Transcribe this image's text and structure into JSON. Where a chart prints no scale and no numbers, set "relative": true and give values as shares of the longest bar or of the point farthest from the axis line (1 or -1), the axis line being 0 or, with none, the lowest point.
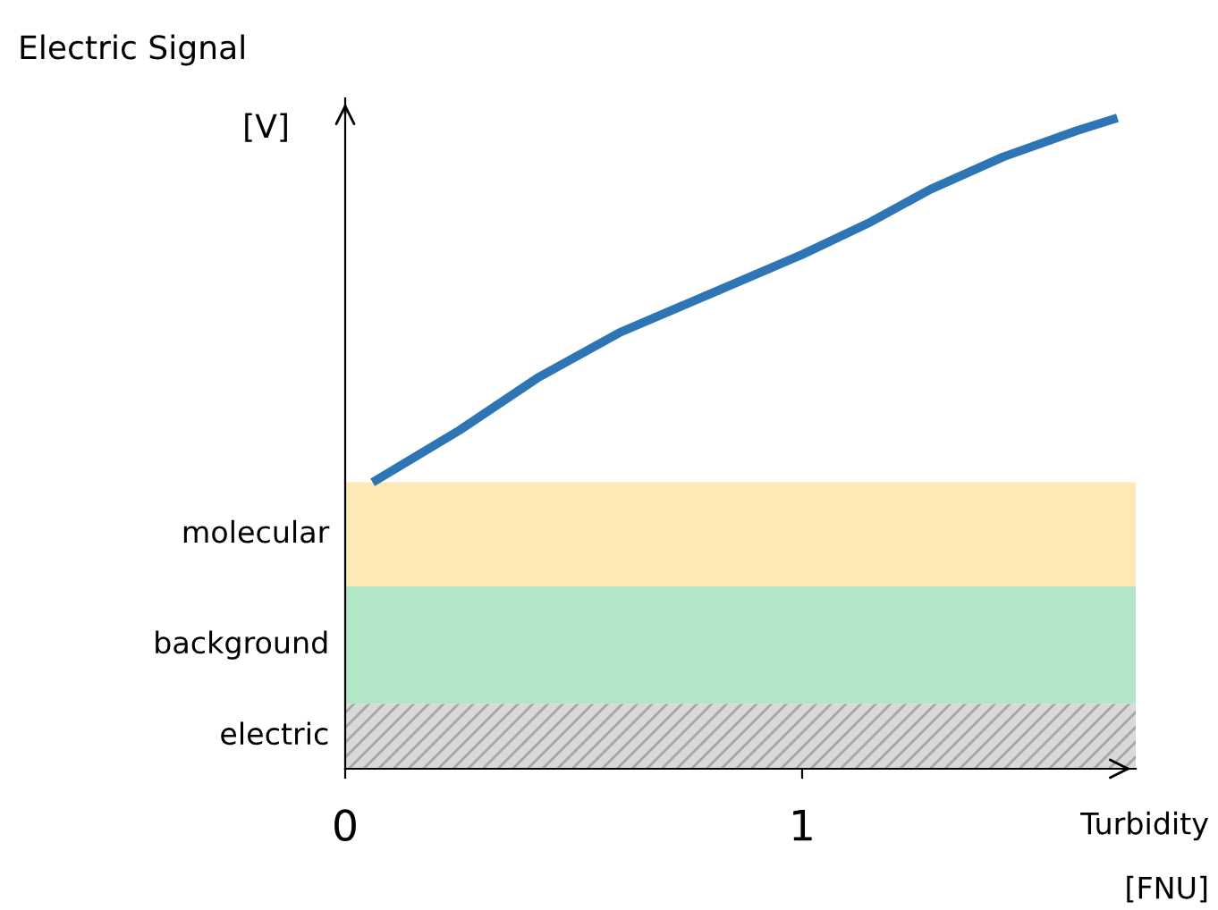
{
  "chart_data": {
    "type": "line",
    "relative": true,
    "xlabel": "Turbidity\n[FNU]",
    "ylabel": "Electric Signal\n[V]",
    "xlim": [
      0,
      1.73
    ],
    "xticks": [
      0,
      1
    ],
    "series": [
      {
        "color": "#2e75b6",
        "x": [
          0.06,
          0.25,
          0.42,
          0.6,
          0.8,
          1.0,
          1.15,
          1.28,
          1.44,
          1.6,
          1.69
        ],
        "values": [
          0.44,
          0.52,
          0.6,
          0.67,
          0.73,
          0.79,
          0.84,
          0.89,
          0.94,
          0.98,
          1.0
        ]
      }
    ],
    "bands": [
      {
        "axis": "y",
        "from": 0,
        "to": 0.1,
        "label": "electric",
        "color": "#a6a6a6"
      },
      {
        "axis": "y",
        "from": 0.1,
        "to": 0.28,
        "label": "background",
        "color": "#b3e6c6"
      },
      {
        "axis": "y",
        "from": 0.28,
        "to": 0.44,
        "label": "molecular",
        "color": "#fde9b5"
      }
    ],
    "grid": false,
    "legend": false,
    "marker": "none",
    "line_style": "solid"
  }
}
